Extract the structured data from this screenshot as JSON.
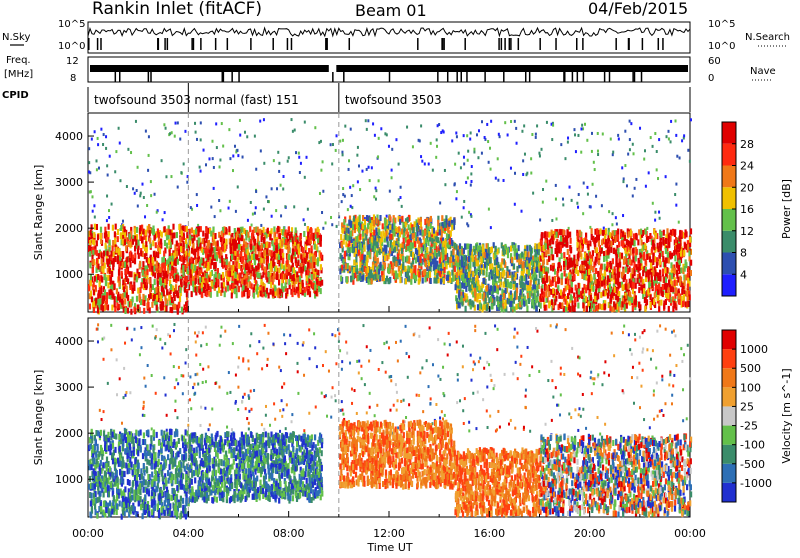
{
  "header": {
    "station": "Rankin Inlet (fitACF)",
    "beam": "Beam 01",
    "date": "04/Feb/2015"
  },
  "strip_labels": {
    "nsky": "N.Sky",
    "freq_line1": "Freq.",
    "freq_line2": "[MHz]",
    "cpid": "CPID",
    "nsearch": "N.Search",
    "nave": "Nave"
  },
  "strip_ticks": {
    "nsky_top": "10^5",
    "nsky_bottom": "10^0",
    "freq_top": "12",
    "freq_bottom": "8",
    "nsearch_top": "10^5",
    "nsearch_bottom": "10^0",
    "nave_top": "60",
    "nave_bottom": "0"
  },
  "cpid_segments": [
    {
      "label": "twofsound 3503",
      "start_h": 0.0,
      "end_h": 4.0
    },
    {
      "label": "normal (fast) 151",
      "start_h": 4.0,
      "end_h": 10.0
    },
    {
      "label": "twofsound 3503",
      "start_h": 10.0,
      "end_h": 24.0
    }
  ],
  "x_axis": {
    "label": "Time UT",
    "ticks": [
      "00:00",
      "04:00",
      "08:00",
      "12:00",
      "16:00",
      "20:00",
      "00:00"
    ]
  },
  "chart_data": [
    {
      "type": "heatmap",
      "name": "power",
      "ylabel": "Slant Range [km]",
      "xlim_h": [
        0,
        24
      ],
      "ylim": [
        180,
        4500
      ],
      "yticks": [
        "1000",
        "2000",
        "3000",
        "4000"
      ],
      "colorbar_label": "Power [dB]",
      "colorbar_ticks": [
        "4",
        "8",
        "12",
        "16",
        "20",
        "24",
        "28"
      ],
      "colors": [
        "#1f1fff",
        "#2d4fb0",
        "#3a8c6a",
        "#63c04a",
        "#f0c000",
        "#f07818",
        "#ff2a10",
        "#e00000"
      ],
      "scatter_regions": [
        {
          "t0": 0.0,
          "t1": 4.0,
          "r0": 250,
          "r1": 2100,
          "intensity": 0.85
        },
        {
          "t0": 4.0,
          "t1": 9.3,
          "r0": 600,
          "r1": 2050,
          "intensity": 0.8
        },
        {
          "t0": 10.0,
          "t1": 14.6,
          "r0": 900,
          "r1": 2300,
          "intensity": 0.7
        },
        {
          "t0": 14.6,
          "t1": 18.0,
          "r0": 300,
          "r1": 1700,
          "intensity": 0.55
        },
        {
          "t0": 18.0,
          "t1": 24.0,
          "r0": 300,
          "r1": 2000,
          "intensity": 0.9
        }
      ]
    },
    {
      "type": "heatmap",
      "name": "velocity",
      "ylabel": "Slant Range [km]",
      "xlim_h": [
        0,
        24
      ],
      "ylim": [
        180,
        4500
      ],
      "yticks": [
        "1000",
        "2000",
        "3000",
        "4000"
      ],
      "colorbar_label": "Velocity [m s^-1]",
      "colorbar_ticks": [
        "1000",
        "500",
        "100",
        "25",
        "-25",
        "-100",
        "-500",
        "-1000"
      ],
      "colors": [
        "#2030d0",
        "#2d6fb5",
        "#3a8c6a",
        "#63c04a",
        "#c8c8c8",
        "#f0a030",
        "#f07818",
        "#ff4010",
        "#e00000"
      ],
      "scatter_regions": [
        {
          "t0": 0.0,
          "t1": 4.0,
          "r0": 250,
          "r1": 2100,
          "sign": "toward"
        },
        {
          "t0": 4.0,
          "t1": 9.3,
          "r0": 600,
          "r1": 2050,
          "sign": "toward"
        },
        {
          "t0": 10.0,
          "t1": 14.6,
          "r0": 900,
          "r1": 2300,
          "sign": "away"
        },
        {
          "t0": 14.6,
          "t1": 18.0,
          "r0": 300,
          "r1": 1700,
          "sign": "away"
        },
        {
          "t0": 18.0,
          "t1": 24.0,
          "r0": 300,
          "r1": 2000,
          "sign": "mixed"
        }
      ]
    }
  ]
}
